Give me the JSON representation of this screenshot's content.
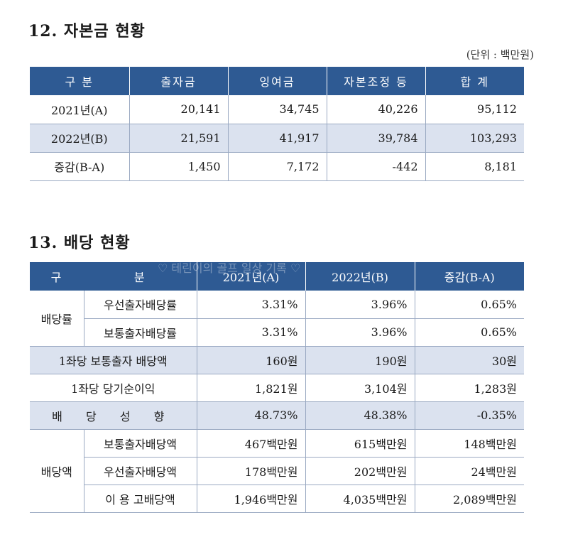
{
  "section12": {
    "title": "12. 자본금 현황",
    "unit": "(단위 : 백만원)",
    "headers": [
      "구  분",
      "출자금",
      "잉여금",
      "자본조정 등",
      "합  계"
    ],
    "rows": [
      [
        "2021년(A)",
        "20,141",
        "34,745",
        "40,226",
        "95,112"
      ],
      [
        "2022년(B)",
        "21,591",
        "41,917",
        "39,784",
        "103,293"
      ],
      [
        "증감(B-A)",
        "1,450",
        "7,172",
        "-442",
        "8,181"
      ]
    ]
  },
  "section13": {
    "title": "13. 배당 현황",
    "headers": [
      "구",
      "분",
      "2021년(A)",
      "2022년(B)",
      "증감(B-A)"
    ],
    "dividend_rate": {
      "group": "배당률",
      "rows": [
        [
          "우선출자배당률",
          "3.31%",
          "3.96%",
          "0.65%"
        ],
        [
          "보통출자배당률",
          "3.31%",
          "3.96%",
          "0.65%"
        ]
      ]
    },
    "per_share_dividend": [
      "1좌당 보통출자 배당액",
      "160원",
      "190원",
      "30원"
    ],
    "per_share_income": [
      "1좌당 당기순이익",
      "1,821원",
      "3,104원",
      "1,283원"
    ],
    "payout_ratio": [
      "배 당 성 향",
      "48.73%",
      "48.38%",
      "-0.35%"
    ],
    "dividend_amount": {
      "group": "배당액",
      "rows": [
        [
          "보통출자배당액",
          "467백만원",
          "615백만원",
          "148백만원"
        ],
        [
          "우선출자배당액",
          "178백만원",
          "202백만원",
          "24백만원"
        ],
        [
          "이 용 고배당액",
          "1,946백만원",
          "4,035백만원",
          "2,089백만원"
        ]
      ]
    }
  },
  "watermark": "♡ 테린이의 골프 일상 기록 ♡"
}
